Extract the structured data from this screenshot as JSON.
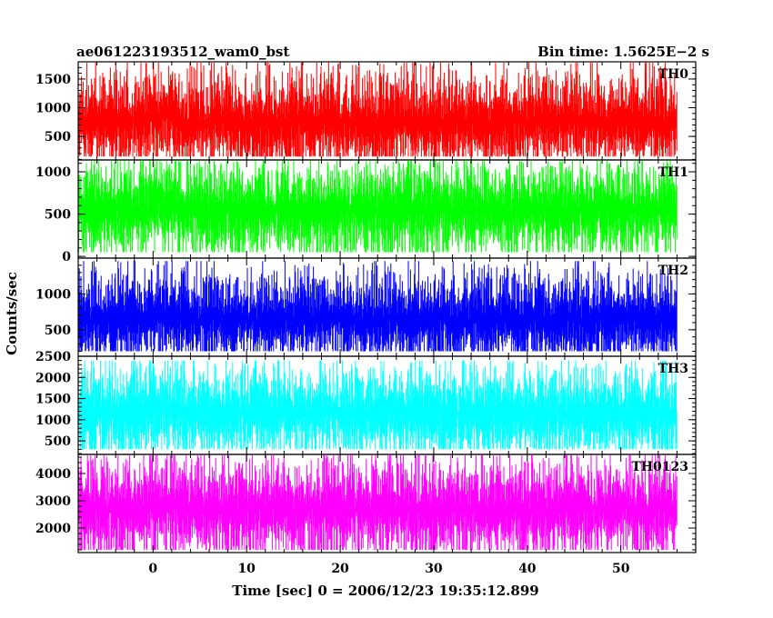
{
  "title_left": "ae061223193512_wam0_bst",
  "title_right": "Bin time: 1.5625E−2 s",
  "ylabel": "Counts/sec",
  "xlabel": "Time [sec] 0 = 2006/12/23 19:35:12.899",
  "chart_data": {
    "type": "line",
    "x_range": [
      -8,
      58
    ],
    "x_ticks": [
      0,
      10,
      20,
      30,
      40,
      50
    ],
    "x_minor_step": 2,
    "x_start": -8,
    "x_end": 56,
    "bin_time": 0.015625,
    "panels": [
      {
        "name": "TH0",
        "color": "#ff0000",
        "ylim": [
          90,
          1800
        ],
        "yticks": [
          500,
          1000,
          1500
        ],
        "ytick_labels": [
          "500",
          "1000",
          "1500"
        ],
        "approx_mean": 750,
        "approx_upper": 1750,
        "approx_lower": 150
      },
      {
        "name": "TH1",
        "color": "#00ff00",
        "ylim": [
          -20,
          1140
        ],
        "yticks": [
          0,
          500,
          1000
        ],
        "ytick_labels": [
          "0",
          "500",
          "1000"
        ],
        "approx_mean": 550,
        "approx_upper": 1100,
        "approx_lower": 50
      },
      {
        "name": "TH2",
        "color": "#0000ff",
        "ylim": [
          130,
          1500
        ],
        "yticks": [
          500,
          1000
        ],
        "ytick_labels": [
          "500",
          "1000"
        ],
        "approx_mean": 650,
        "approx_upper": 1400,
        "approx_lower": 200
      },
      {
        "name": "TH3",
        "color": "#00ffff",
        "ylim": [
          180,
          2500
        ],
        "yticks": [
          500,
          1000,
          1500,
          2000,
          2500
        ],
        "ytick_labels": [
          "500",
          "1000",
          "1500",
          "2000",
          "2500"
        ],
        "approx_mean": 1150,
        "approx_upper": 2300,
        "approx_lower": 300
      },
      {
        "name": "TH0123",
        "color": "#ff00ff",
        "ylim": [
          1100,
          4700
        ],
        "yticks": [
          2000,
          3000,
          4000
        ],
        "ytick_labels": [
          "2000",
          "3000",
          "4000"
        ],
        "approx_mean": 2700,
        "approx_upper": 4600,
        "approx_lower": 1200
      }
    ]
  }
}
